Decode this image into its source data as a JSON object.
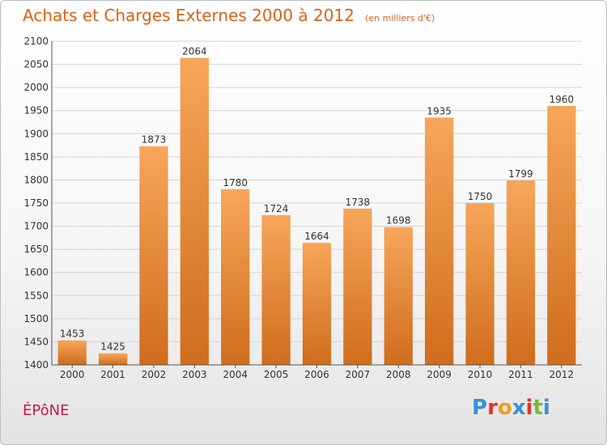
{
  "header": {
    "title": "Achats et Charges Externes 2000 à 2012",
    "subtitle": "(en milliers d'€)"
  },
  "footer": {
    "commune": "ÉPôNE",
    "logo_text": "Proxiti"
  },
  "colors": {
    "accent": "#d9621a",
    "bar_top": "#f7a65a",
    "bar_bottom": "#cf6d1c",
    "commune": "#c8174e",
    "logo_letters": [
      "#3a8fd6",
      "#e0342b",
      "#f29c1f",
      "#3a8fd6",
      "#e0342b",
      "#7cb83b",
      "#3a8fd6"
    ]
  },
  "chart_data": {
    "type": "bar",
    "categories": [
      "2000",
      "2001",
      "2002",
      "2003",
      "2004",
      "2005",
      "2006",
      "2007",
      "2008",
      "2009",
      "2010",
      "2011",
      "2012"
    ],
    "values": [
      1453,
      1425,
      1873,
      2064,
      1780,
      1724,
      1664,
      1738,
      1698,
      1935,
      1750,
      1799,
      1960
    ],
    "title": "Achats et Charges Externes 2000 à 2012",
    "subtitle": "(en milliers d'€)",
    "xlabel": "",
    "ylabel": "",
    "ylim": [
      1400,
      2100
    ],
    "yticks": [
      1400,
      1450,
      1500,
      1550,
      1600,
      1650,
      1700,
      1750,
      1800,
      1850,
      1900,
      1950,
      2000,
      2050,
      2100
    ],
    "grid": true,
    "legend": "none"
  }
}
